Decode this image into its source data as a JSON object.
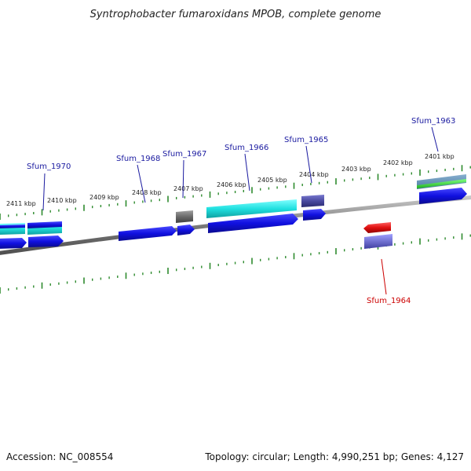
{
  "title": "Syntrophobacter fumaroxidans MPOB, complete genome",
  "footer": {
    "accession": "Accession: NC_008554",
    "summary": "Topology: circular; Length: 4,990,251 bp; Genes: 4,127"
  },
  "ticks": [
    "2411 kbp",
    "2410 kbp",
    "2409 kbp",
    "2408 kbp",
    "2407 kbp",
    "2406 kbp",
    "2405 kbp",
    "2404 kbp",
    "2403 kbp",
    "2402 kbp",
    "2401 kbp"
  ],
  "gene_labels": [
    {
      "name": "Sfum_1970",
      "color": "#1a1aa0"
    },
    {
      "name": "Sfum_1968",
      "color": "#1a1aa0"
    },
    {
      "name": "Sfum_1967",
      "color": "#1a1aa0"
    },
    {
      "name": "Sfum_1966",
      "color": "#1a1aa0"
    },
    {
      "name": "Sfum_1965",
      "color": "#1a1aa0"
    },
    {
      "name": "Sfum_1963",
      "color": "#1a1aa0"
    },
    {
      "name": "Sfum_1964",
      "color": "#cc0000"
    }
  ],
  "colors": {
    "backbone": "#8a8a8a",
    "tick": "#2e8b2e",
    "gene_forward": "#1414e6",
    "gene_cyan": "#20e0e0",
    "gene_reverse": "#e01010",
    "gene_gray": "#707070",
    "gene_slate": "#4a4a9a"
  }
}
